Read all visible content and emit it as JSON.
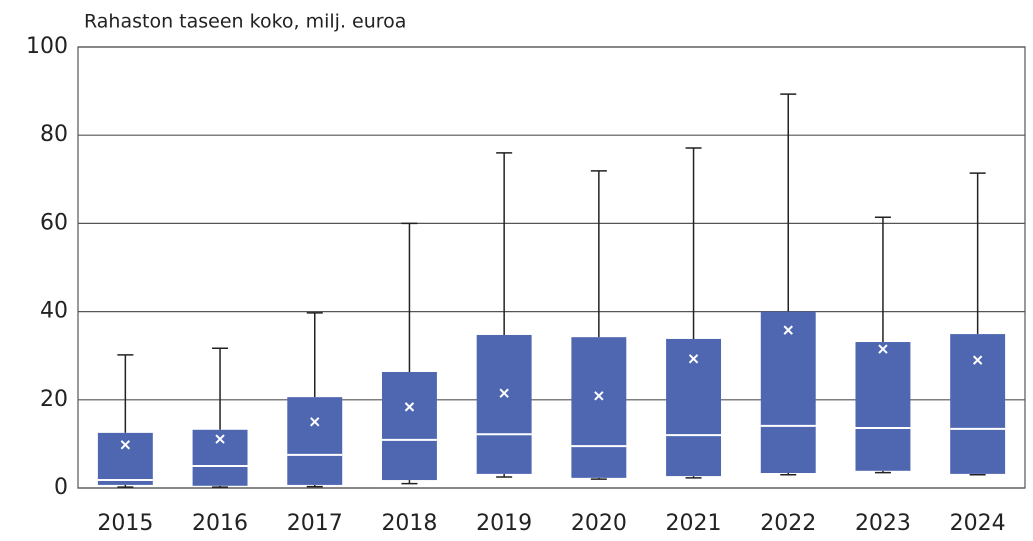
{
  "chart_data": {
    "type": "box",
    "title": "Rahaston taseen koko, milj. euroa",
    "categories": [
      "2015",
      "2016",
      "2017",
      "2018",
      "2019",
      "2020",
      "2021",
      "2022",
      "2023",
      "2024"
    ],
    "min": [
      0.2,
      0.2,
      0.3,
      1,
      2.5,
      2,
      2.3,
      3,
      3.5,
      3
    ],
    "q1": [
      0.7,
      0.5,
      0.7,
      1.8,
      3.2,
      2.3,
      2.7,
      3.4,
      3.9,
      3.2
    ],
    "median": [
      1.8,
      5,
      7.5,
      10.9,
      12.2,
      9.5,
      12,
      14.1,
      13.6,
      13.4
    ],
    "q3": [
      12.5,
      13.2,
      20.6,
      26.3,
      34.7,
      34.2,
      33.8,
      40,
      33.1,
      34.9
    ],
    "max": [
      30.2,
      31.7,
      39.7,
      60,
      76,
      71.9,
      77.1,
      89.3,
      61.4,
      71.4
    ],
    "mean": [
      9.8,
      11.1,
      15,
      18.4,
      21.5,
      20.9,
      29.3,
      35.8,
      31.5,
      29
    ],
    "color": "#4f67b1",
    "ylim": [
      0,
      100
    ],
    "yticks": [
      0,
      20,
      40,
      60,
      80,
      100
    ],
    "grid": true
  }
}
